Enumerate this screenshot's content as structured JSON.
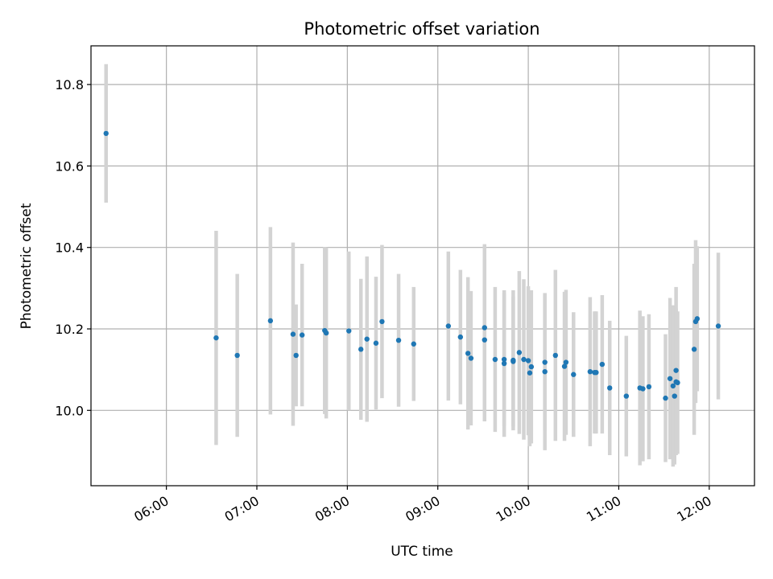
{
  "chart_data": {
    "type": "scatter",
    "title": "Photometric offset variation",
    "xlabel": "UTC time",
    "ylabel": "Photometric offset",
    "x_type": "time",
    "xlim": [
      "05:10",
      "12:30"
    ],
    "ylim": [
      9.815,
      10.895
    ],
    "x_ticks": [
      "06:00",
      "07:00",
      "08:00",
      "09:00",
      "10:00",
      "11:00",
      "12:00"
    ],
    "y_ticks": [
      10.0,
      10.2,
      10.4,
      10.6,
      10.8
    ],
    "y_tick_labels": [
      "10.0",
      "10.2",
      "10.4",
      "10.6",
      "10.8"
    ],
    "grid": true,
    "colors": {
      "point": "#1f77b4",
      "errorbar": "#d3d3d3",
      "grid": "#b0b0b0"
    },
    "series": [
      {
        "x": [
          "05:20",
          "06:33",
          "06:47",
          "07:09",
          "07:24",
          "07:26",
          "07:30",
          "07:45",
          "07:46",
          "08:01",
          "08:09",
          "08:13",
          "08:19",
          "08:23",
          "08:34",
          "08:44",
          "09:07",
          "09:15",
          "09:20",
          "09:22",
          "09:31",
          "09:31",
          "09:38",
          "09:44",
          "09:44",
          "09:50",
          "09:50",
          "09:54",
          "09:57",
          "10:00",
          "10:01",
          "10:02",
          "10:11",
          "10:11",
          "10:18",
          "10:24",
          "10:25",
          "10:30",
          "10:41",
          "10:44",
          "10:45",
          "10:49",
          "10:54",
          "11:05",
          "11:14",
          "11:16",
          "11:20",
          "11:31",
          "11:34",
          "11:36",
          "11:37",
          "11:38",
          "11:38",
          "11:39",
          "11:50",
          "11:51",
          "11:52",
          "12:06"
        ],
        "y": [
          10.68,
          10.178,
          10.135,
          10.22,
          10.187,
          10.135,
          10.185,
          10.196,
          10.19,
          10.195,
          10.15,
          10.175,
          10.165,
          10.218,
          10.172,
          10.163,
          10.207,
          10.18,
          10.14,
          10.128,
          10.203,
          10.173,
          10.125,
          10.125,
          10.115,
          10.12,
          10.123,
          10.142,
          10.125,
          10.122,
          10.092,
          10.107,
          10.118,
          10.095,
          10.135,
          10.108,
          10.118,
          10.088,
          10.095,
          10.093,
          10.093,
          10.113,
          10.055,
          10.035,
          10.055,
          10.053,
          10.058,
          10.03,
          10.078,
          10.06,
          10.035,
          10.098,
          10.07,
          10.068,
          10.15,
          10.218,
          10.225,
          10.207
        ],
        "yerr": [
          0.17,
          0.263,
          0.2,
          0.23,
          0.225,
          0.125,
          0.175,
          0.205,
          0.21,
          0.195,
          0.173,
          0.203,
          0.163,
          0.188,
          0.163,
          0.14,
          0.183,
          0.165,
          0.187,
          0.165,
          0.205,
          0.2,
          0.178,
          0.163,
          0.18,
          0.16,
          0.172,
          0.2,
          0.197,
          0.183,
          0.18,
          0.188,
          0.168,
          0.193,
          0.21,
          0.183,
          0.178,
          0.153,
          0.183,
          0.15,
          0.15,
          0.17,
          0.165,
          0.148,
          0.19,
          0.178,
          0.178,
          0.157,
          0.198,
          0.198,
          0.168,
          0.205,
          0.18,
          0.175,
          0.21,
          0.2,
          0.178,
          0.18
        ]
      }
    ]
  }
}
